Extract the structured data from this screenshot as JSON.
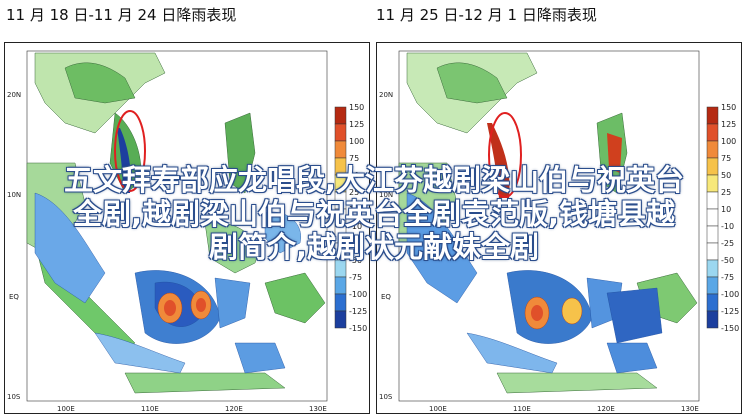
{
  "panels": [
    {
      "title": "11 月 18 日-11 月 24 日降雨表现"
    },
    {
      "title": "11 月 25 日-12 月 1 日降雨表现"
    }
  ],
  "axes": {
    "lat_labels": [
      "20N",
      "10N",
      "EQ",
      "10S"
    ],
    "lon_labels": [
      "100E",
      "110E",
      "120E",
      "130E"
    ]
  },
  "legend": {
    "levels": [
      "150",
      "125",
      "100",
      "75",
      "50",
      "25",
      "10",
      "-10",
      "-25",
      "-50",
      "-75",
      "-100",
      "-125",
      "-150"
    ],
    "level_labels": [
      "150",
      "125",
      "100",
      "75",
      "50",
      "25",
      "10",
      "-10",
      "-25",
      "-50",
      "-75",
      "-100",
      "-125",
      "-150"
    ],
    "colors": [
      "#b52a12",
      "#e0502a",
      "#f08a3a",
      "#f6c24a",
      "#f7e87a",
      "#fff",
      "#fff",
      "#fff",
      "#fff",
      "#9bd7f0",
      "#5aa7e6",
      "#2c6fd0",
      "#1c3f9e"
    ]
  },
  "overlay_text": {
    "line1": "五文拜寿部应龙唱段,大江芬越剧梁山伯与祝英台",
    "line2": "全剧,越剧梁山伯与祝英台全剧袁范版,钱塘县越",
    "line3": "剧简介,越剧状元献妹全剧"
  }
}
